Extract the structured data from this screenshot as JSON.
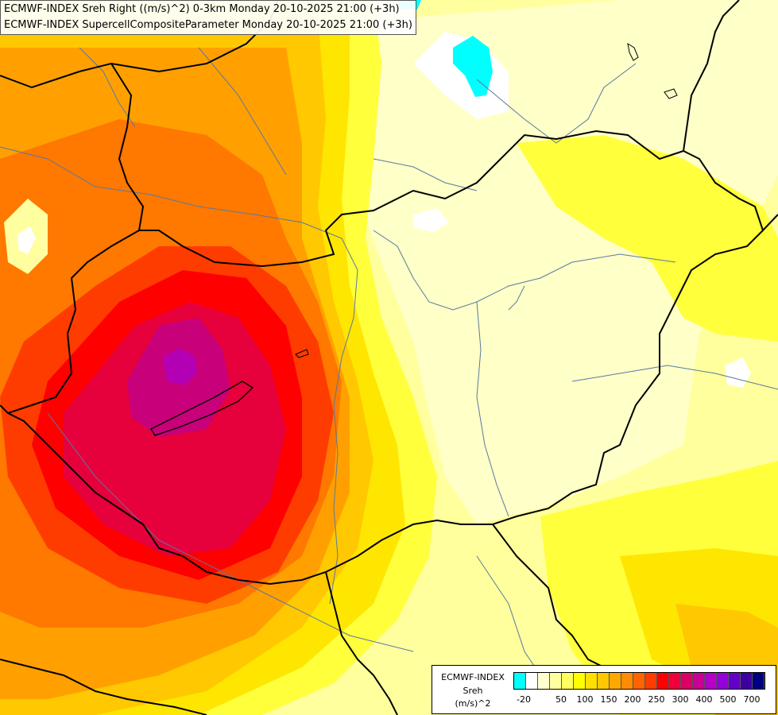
{
  "header": {
    "line1": "ECMWF-INDEX Sreh Right ((m/s)^2) 0-3km Monday 20-10-2025 21:00 (+3h)",
    "line2": "ECMWF-INDEX SupercellCompositeParameter Monday 20-10-2025 21:00 (+3h)"
  },
  "legend": {
    "title": "ECMWF-INDEX",
    "variable": "Sreh",
    "unit": "(m/s)^2",
    "colors": [
      "#00ffff",
      "#ffffff",
      "#ffffd0",
      "#ffffa0",
      "#ffff60",
      "#ffff00",
      "#ffe000",
      "#ffc800",
      "#ffa800",
      "#ff8c00",
      "#ff6400",
      "#ff3c00",
      "#ff0000",
      "#f0003c",
      "#dc0064",
      "#c80096",
      "#b400c8",
      "#9600dc",
      "#6400c8",
      "#3c00a0",
      "#000080"
    ],
    "ticks": [
      "-20",
      "50",
      "100",
      "150",
      "200",
      "250",
      "300",
      "400",
      "500",
      "700"
    ]
  },
  "colors": {
    "pale": "#ffffc8",
    "light": "#ffff9e",
    "yellow": "#ffff3c",
    "gold": "#ffe600",
    "orange1": "#ffc800",
    "orange2": "#ffa000",
    "orange3": "#ff7800",
    "red1": "#ff3c00",
    "red2": "#ff0000",
    "crimson": "#e6003c",
    "magenta": "#c8007a",
    "purple": "#b400b4",
    "cyan": "#00ffff",
    "white": "#ffffff",
    "border": "#000000",
    "river": "#5a78a0"
  }
}
